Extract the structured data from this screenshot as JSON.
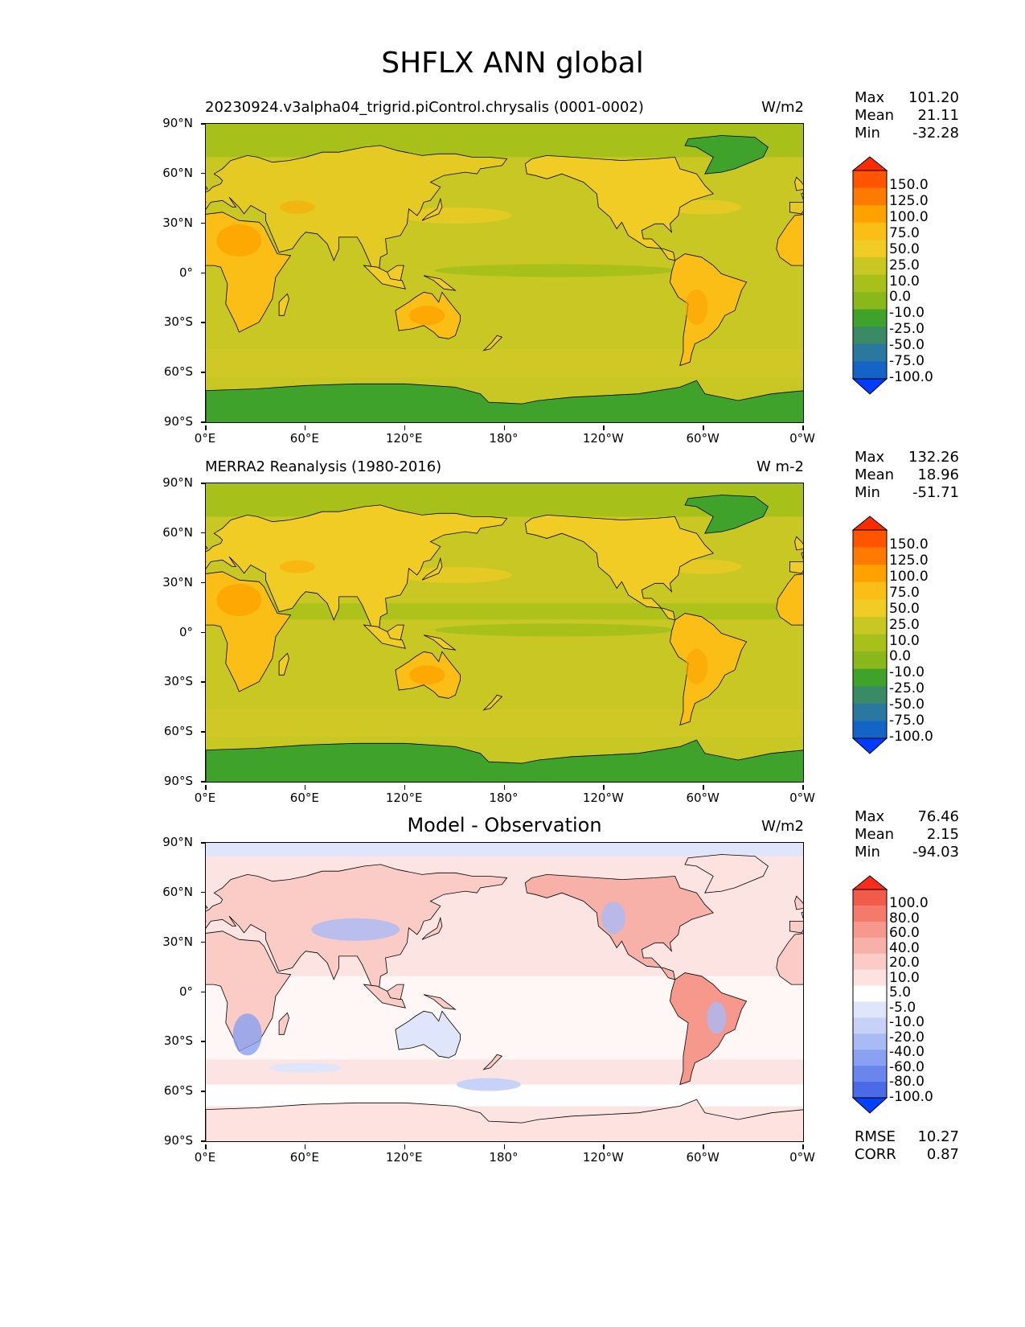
{
  "page_title": "SHFLX ANN global",
  "lat_ticks": [
    "90°N",
    "60°N",
    "30°N",
    "0°",
    "30°S",
    "60°S",
    "90°S"
  ],
  "lon_ticks": [
    "0°E",
    "60°E",
    "120°E",
    "180°",
    "120°W",
    "60°W",
    "0°W"
  ],
  "panels": [
    {
      "title_left": "20230924.v3alpha04_trigrid.piControl.chrysalis (0001-0002)",
      "title_center": "",
      "units": "W/m2",
      "stats": {
        "max_label": "Max",
        "max": "101.20",
        "mean_label": "Mean",
        "mean": "21.11",
        "min_label": "Min",
        "min": "-32.28"
      },
      "colorbar_labels": [
        "150.0",
        "125.0",
        "100.0",
        "75.0",
        "50.0",
        "25.0",
        "10.0",
        "0.0",
        "-10.0",
        "-25.0",
        "-50.0",
        "-75.0",
        "-100.0"
      ],
      "colorbar_colors": [
        "#ff2a00",
        "#ff5500",
        "#ff7a00",
        "#ffa200",
        "#fbbe16",
        "#f0cc24",
        "#c8c724",
        "#a8c11a",
        "#8ab81a",
        "#3fa22b",
        "#3a8a66",
        "#2a78a0",
        "#1464c8",
        "#003cff"
      ]
    },
    {
      "title_left": "MERRA2 Reanalysis (1980-2016)",
      "title_center": "",
      "units": "W m-2",
      "stats": {
        "max_label": "Max",
        "max": "132.26",
        "mean_label": "Mean",
        "mean": "18.96",
        "min_label": "Min",
        "min": "-51.71"
      },
      "colorbar_labels": [
        "150.0",
        "125.0",
        "100.0",
        "75.0",
        "50.0",
        "25.0",
        "10.0",
        "0.0",
        "-10.0",
        "-25.0",
        "-50.0",
        "-75.0",
        "-100.0"
      ],
      "colorbar_colors": [
        "#ff2a00",
        "#ff5500",
        "#ff7a00",
        "#ffa200",
        "#fbbe16",
        "#f0cc24",
        "#c8c724",
        "#a8c11a",
        "#8ab81a",
        "#3fa22b",
        "#3a8a66",
        "#2a78a0",
        "#1464c8",
        "#003cff"
      ]
    },
    {
      "title_left": "",
      "title_center": "Model - Observation",
      "units": "W/m2",
      "stats": {
        "max_label": "Max",
        "max": "76.46",
        "mean_label": "Mean",
        "mean": "2.15",
        "min_label": "Min",
        "min": "-94.03"
      },
      "colorbar_labels": [
        "100.0",
        "80.0",
        "60.0",
        "40.0",
        "20.0",
        "10.0",
        "5.0",
        "-5.0",
        "-10.0",
        "-20.0",
        "-40.0",
        "-60.0",
        "-80.0",
        "-100.0"
      ],
      "colorbar_colors": [
        "#ff2a1a",
        "#f25a4a",
        "#f47a6c",
        "#f6988c",
        "#f8b1a8",
        "#fbccc6",
        "#fde2df",
        "#ffffff",
        "#dfe6fb",
        "#c6d2f8",
        "#a9baf5",
        "#8aa0f0",
        "#6a86ec",
        "#4a6ae8",
        "#0040ff"
      ],
      "footer": {
        "rmse_label": "RMSE",
        "rmse": "10.27",
        "corr_label": "CORR",
        "corr": "0.87"
      }
    }
  ],
  "colors": {
    "background": "#ffffff",
    "coast": "#000000",
    "ocean_field": "#c8c724",
    "land_warm": "#f0cc24",
    "land_hot": "#fbbe16",
    "polar": "#3fa22b",
    "diff_pos": "#f8b1a8",
    "diff_neg": "#a9baf5"
  }
}
